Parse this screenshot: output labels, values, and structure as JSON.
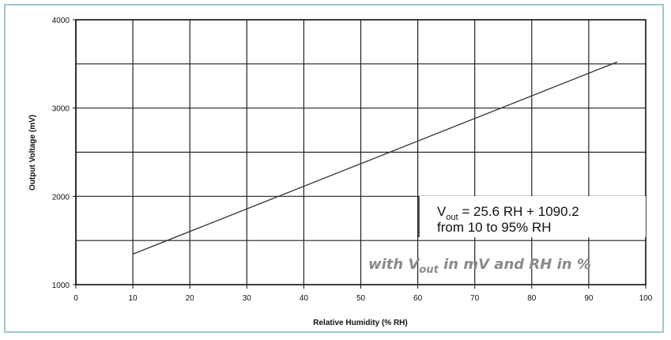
{
  "chart_data": {
    "type": "line",
    "xlabel": "Relative Humidity (% RH)",
    "ylabel": "Output Voltage (mV)",
    "xlim": [
      0,
      100
    ],
    "ylim": [
      1000,
      4000
    ],
    "x_ticks": [
      "0",
      "10",
      "20",
      "30",
      "40",
      "50",
      "60",
      "70",
      "80",
      "90",
      "100"
    ],
    "y_ticks": [
      "1000",
      "2000",
      "3000",
      "4000"
    ],
    "grid": true,
    "series": [
      {
        "x": [
          10,
          95
        ],
        "y": [
          1346.2,
          3522.2
        ],
        "color": "#333333"
      }
    ],
    "annotations": {
      "equation_prefix": "V",
      "equation_sub": "out",
      "equation_rest": " = 25.6 RH + 1090.2",
      "range_text": "from 10 to 95% RH",
      "note_prefix": "with V",
      "note_sub": "out",
      "note_rest": " in mV and RH in %"
    }
  }
}
